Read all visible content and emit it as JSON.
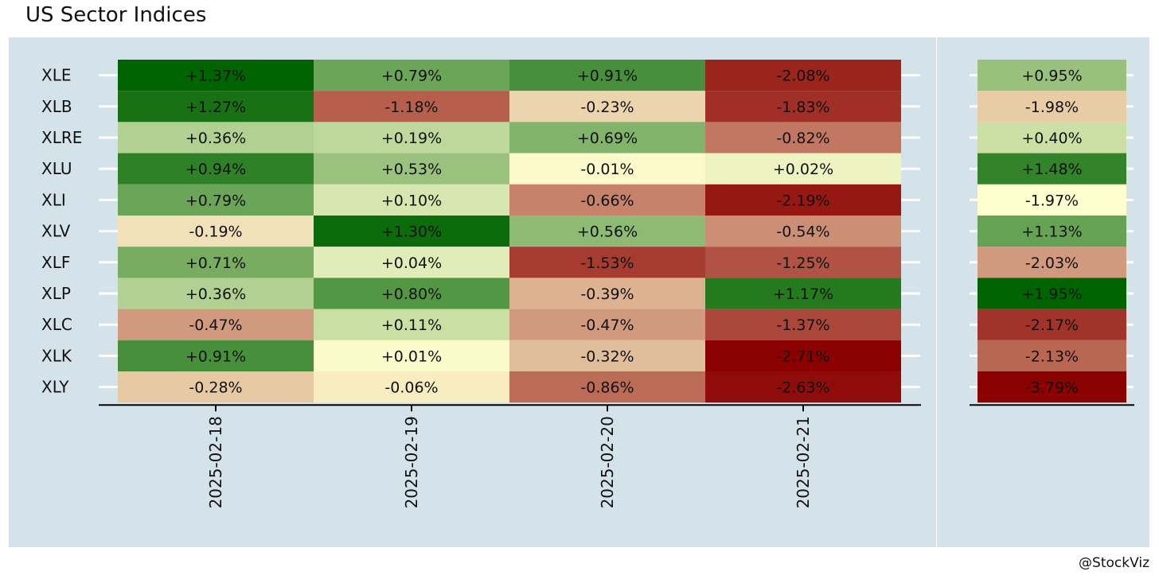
{
  "title": "US Sector Indices",
  "credit": "@StockViz",
  "colors": {
    "panel_background": "#d4e3ea",
    "scale_low": "#8b0000",
    "scale_mid": "#ffffd0",
    "scale_high": "#006400"
  },
  "chart_data": [
    {
      "type": "heatmap",
      "title": "US Sector Indices",
      "x": [
        "2025-02-18",
        "2025-02-19",
        "2025-02-20",
        "2025-02-21"
      ],
      "y": [
        "XLE",
        "XLB",
        "XLRE",
        "XLU",
        "XLI",
        "XLV",
        "XLF",
        "XLP",
        "XLC",
        "XLK",
        "XLY"
      ],
      "values": [
        [
          1.37,
          0.79,
          0.91,
          -2.08
        ],
        [
          1.27,
          -1.18,
          -0.23,
          -1.83
        ],
        [
          0.36,
          0.19,
          0.69,
          -0.82
        ],
        [
          0.94,
          0.53,
          -0.01,
          0.02
        ],
        [
          0.79,
          0.1,
          -0.66,
          -2.19
        ],
        [
          -0.19,
          1.3,
          0.56,
          -0.54
        ],
        [
          0.71,
          0.04,
          -1.53,
          -1.25
        ],
        [
          0.36,
          0.8,
          -0.39,
          1.17
        ],
        [
          -0.47,
          0.11,
          -0.47,
          -1.37
        ],
        [
          0.91,
          0.01,
          -0.32,
          -2.71
        ],
        [
          -0.28,
          -0.06,
          -0.86,
          -2.63
        ]
      ],
      "labels": [
        [
          "+1.37%",
          "+0.79%",
          "+0.91%",
          "-2.08%"
        ],
        [
          "+1.27%",
          "-1.18%",
          "-0.23%",
          "-1.83%"
        ],
        [
          "+0.36%",
          "+0.19%",
          "+0.69%",
          "-0.82%"
        ],
        [
          "+0.94%",
          "+0.53%",
          "-0.01%",
          "+0.02%"
        ],
        [
          "+0.79%",
          "+0.10%",
          "-0.66%",
          "-2.19%"
        ],
        [
          "-0.19%",
          "+1.30%",
          "+0.56%",
          "-0.54%"
        ],
        [
          "+0.71%",
          "+0.04%",
          "-1.53%",
          "-1.25%"
        ],
        [
          "+0.36%",
          "+0.80%",
          "-0.39%",
          "+1.17%"
        ],
        [
          "-0.47%",
          "+0.11%",
          "-0.47%",
          "-1.37%"
        ],
        [
          "+0.91%",
          "+0.01%",
          "-0.32%",
          "-2.71%"
        ],
        [
          "-0.28%",
          "-0.06%",
          "-0.86%",
          "-2.63%"
        ]
      ],
      "value_range": [
        -2.71,
        1.37
      ]
    },
    {
      "type": "heatmap",
      "y": [
        "XLE",
        "XLB",
        "XLRE",
        "XLU",
        "XLI",
        "XLV",
        "XLF",
        "XLP",
        "XLC",
        "XLK",
        "XLY"
      ],
      "values": [
        0.95,
        -1.98,
        0.4,
        1.48,
        -1.97,
        1.13,
        -2.03,
        1.95,
        -2.17,
        -2.13,
        -3.79
      ],
      "labels": [
        "+0.95%",
        "-1.98%",
        "+0.40%",
        "+1.48%",
        "-1.97%",
        "+1.13%",
        "-2.03%",
        "+1.95%",
        "-2.17%",
        "-2.13%",
        "-3.79%"
      ],
      "value_range": [
        -3.79,
        1.95
      ]
    }
  ]
}
